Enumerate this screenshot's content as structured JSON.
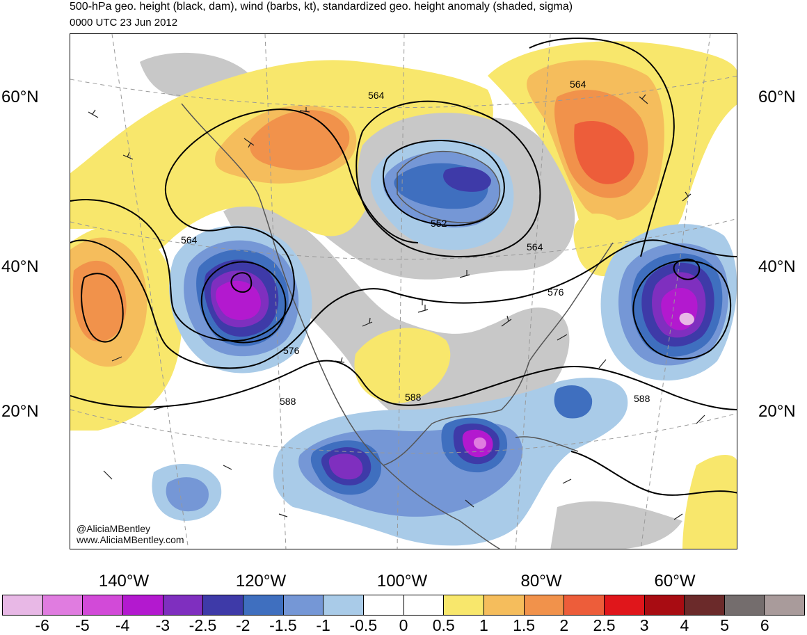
{
  "header": {
    "title": "500-hPa geo. height (black, dam), wind (barbs, kt), standardized geo. height anomaly (shaded, sigma)",
    "valid_time": "0000 UTC 23 Jun 2012"
  },
  "map": {
    "latitude_labels": [
      "60°N",
      "40°N",
      "20°N"
    ],
    "longitude_labels": [
      "140°W",
      "120°W",
      "100°W",
      "80°W",
      "60°W"
    ],
    "contour_labels": [
      "564",
      "564",
      "564",
      "552",
      "564",
      "576",
      "576",
      "588",
      "588",
      "588"
    ],
    "credits": [
      "@AliciaMBentley",
      "www.AliciaMBentley.com"
    ],
    "colors": {
      "land": "#c8c8c8",
      "coastline": "#555555",
      "contour": "#000000"
    }
  },
  "colorbar": {
    "labels": [
      "-6",
      "-5",
      "-4",
      "-3",
      "-2.5",
      "-2",
      "-1.5",
      "-1",
      "-0.5",
      "0",
      "0.5",
      "1",
      "1.5",
      "2",
      "2.5",
      "3",
      "4",
      "5",
      "6"
    ],
    "colors": [
      "#e8b8e6",
      "#e07ce0",
      "#d24ad8",
      "#b319cf",
      "#7f2fbf",
      "#3e3aa8",
      "#3f6fbf",
      "#7597d6",
      "#a9cbe8",
      "#ffffff",
      "#ffffff",
      "#f8e76c",
      "#f5bd5c",
      "#f1924b",
      "#ed5d3a",
      "#e0161b",
      "#a80c12",
      "#6b2a2a",
      "#746d6d",
      "#a99b9b"
    ]
  }
}
